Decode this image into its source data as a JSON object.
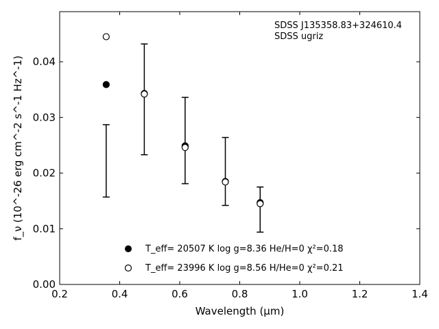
{
  "chart_data": {
    "type": "scatter",
    "title": "",
    "xlabel": "Wavelength (μm)",
    "ylabel": "f_ν (10^-26 erg cm^-2 s^-1 Hz^-1)",
    "xlim": [
      0.2,
      1.4
    ],
    "ylim": [
      0.0,
      0.049
    ],
    "xticks": [
      "0.2",
      "0.4",
      "0.6",
      "0.8",
      "1.0",
      "1.2",
      "1.4"
    ],
    "yticks": [
      "0.00",
      "0.01",
      "0.02",
      "0.03",
      "0.04"
    ],
    "grid": false,
    "annotations": [
      "SDSS J135358.83+324610.4",
      "SDSS ugriz"
    ],
    "observed": {
      "x": [
        0.355,
        0.482,
        0.618,
        0.752,
        0.868
      ],
      "y": [
        0.0211,
        0.0328,
        0.0258,
        0.0204,
        0.0135
      ],
      "yerr_low": [
        0.0157,
        0.0233,
        0.0181,
        0.0142,
        0.0094
      ],
      "yerr_high": [
        0.0287,
        0.0432,
        0.0336,
        0.0264,
        0.0175
      ]
    },
    "series": [
      {
        "name": "T_eff= 20507 K  log g=8.36  He/H=0  χ²=0.18",
        "marker": "filled-circle",
        "x": [
          0.355,
          0.482,
          0.618,
          0.752,
          0.868
        ],
        "values": [
          0.0359,
          0.0343,
          0.0249,
          0.0185,
          0.0147
        ]
      },
      {
        "name": "T_eff= 23996 K  log g=8.56  H/He=0  χ²=0.21",
        "marker": "open-circle",
        "x": [
          0.355,
          0.482,
          0.618,
          0.752,
          0.868
        ],
        "values": [
          0.0445,
          0.0342,
          0.0246,
          0.0184,
          0.0145
        ]
      }
    ],
    "legend_position": "bottom-center",
    "colors": {
      "marker": "#000000",
      "axis": "#000000",
      "background": "#ffffff"
    }
  }
}
